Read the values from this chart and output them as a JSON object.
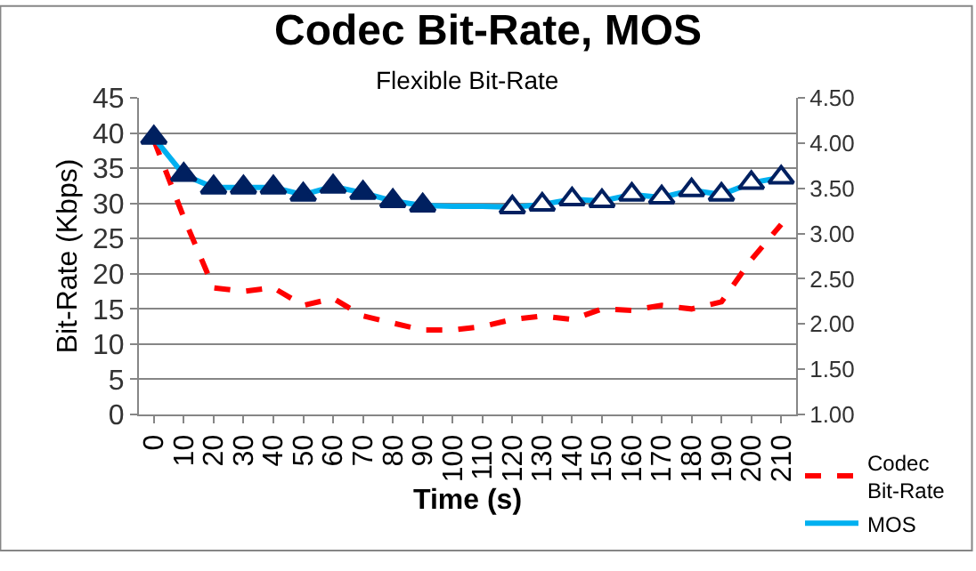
{
  "chart_data": {
    "type": "line",
    "title": "Codec Bit-Rate, MOS",
    "subtitle": "Flexible Bit-Rate",
    "xlabel": "Time (s)",
    "ylabel": "Bit-Rate (Kbps)",
    "categories": [
      "0",
      "10",
      "20",
      "30",
      "40",
      "50",
      "60",
      "70",
      "80",
      "90",
      "100",
      "110",
      "120",
      "130",
      "140",
      "150",
      "160",
      "170",
      "180",
      "190",
      "200",
      "210"
    ],
    "series": [
      {
        "name": "Codec Bit-Rate",
        "color": "#ff0000",
        "line_style": "dashed",
        "values": [
          39,
          28,
          18,
          17.5,
          18,
          15.5,
          16.5,
          14,
          13,
          12,
          12,
          12.5,
          13.5,
          14,
          13.5,
          15,
          14.8,
          15.5,
          15,
          16,
          22,
          27
        ]
      },
      {
        "name": "MOS",
        "color": "#00b0f0",
        "axis": "y2",
        "values": [
          4.06,
          3.65,
          3.51,
          3.51,
          3.51,
          3.43,
          3.52,
          3.45,
          3.36,
          3.31,
          3.3,
          3.3,
          3.29,
          3.32,
          3.38,
          3.36,
          3.43,
          3.4,
          3.48,
          3.43,
          3.56,
          3.62
        ]
      },
      {
        "type": "scatter",
        "marker": "triangle",
        "axis": "y2",
        "color": "#002060",
        "colors": [
          "#002060",
          "#002060",
          "#002060",
          "#002060",
          "#002060",
          "#002060",
          "#002060",
          "#002060",
          "#002060",
          "#002060",
          "#ffffff",
          "#ffffff",
          "#ffffff",
          "#ffffff",
          "#ffffff",
          "#ffffff",
          "#ffffff",
          "#ffffff",
          "#ffffff",
          "#ffffff",
          "#ffffff",
          "#ffffff"
        ],
        "values": [
          4.06,
          3.65,
          3.51,
          3.51,
          3.51,
          3.43,
          3.52,
          3.45,
          3.36,
          3.31,
          null,
          null,
          3.29,
          3.32,
          3.38,
          3.36,
          3.43,
          3.4,
          3.48,
          3.43,
          3.56,
          3.62
        ]
      }
    ],
    "ylim": [
      0,
      45
    ],
    "yticks": [
      0,
      5,
      10,
      15,
      20,
      25,
      30,
      35,
      40,
      45
    ],
    "y2lim": [
      1,
      4.5
    ],
    "y2ticks": [
      {
        "value": 1,
        "label": "1.00"
      },
      {
        "value": 1.5,
        "label": "1.50"
      },
      {
        "value": 2,
        "label": "2.00"
      },
      {
        "value": 2.5,
        "label": "2.50"
      },
      {
        "value": 3,
        "label": "3.00"
      },
      {
        "value": 3.5,
        "label": "3.50"
      },
      {
        "value": 4,
        "label": "4.00"
      },
      {
        "value": 4.5,
        "label": "4.50"
      }
    ],
    "grid": "y",
    "legend": "bottom right"
  }
}
